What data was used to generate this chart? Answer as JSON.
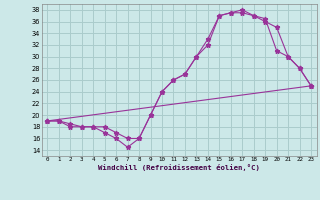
{
  "xlabel": "Windchill (Refroidissement éolien,°C)",
  "bg_color": "#cce8e8",
  "grid_color": "#aacccc",
  "line_color": "#993399",
  "xlim": [
    -0.5,
    23.5
  ],
  "ylim": [
    13,
    39
  ],
  "yticks": [
    14,
    16,
    18,
    20,
    22,
    24,
    26,
    28,
    30,
    32,
    34,
    36,
    38
  ],
  "xticks": [
    0,
    1,
    2,
    3,
    4,
    5,
    6,
    7,
    8,
    9,
    10,
    11,
    12,
    13,
    14,
    15,
    16,
    17,
    18,
    19,
    20,
    21,
    22,
    23
  ],
  "line1_x": [
    0,
    1,
    2,
    3,
    4,
    5,
    6,
    7,
    8,
    9,
    10,
    11,
    12,
    13,
    14,
    15,
    16,
    17,
    18,
    19,
    20,
    21,
    22,
    23
  ],
  "line1_y": [
    19,
    19,
    18,
    18,
    18,
    17,
    16,
    14.5,
    16,
    20,
    24,
    26,
    27,
    30,
    32,
    37,
    37.5,
    37.5,
    37,
    36,
    35,
    30,
    28,
    25
  ],
  "line2_x": [
    0,
    1,
    2,
    3,
    4,
    5,
    6,
    7,
    8,
    9,
    10,
    11,
    12,
    13,
    14,
    15,
    16,
    17,
    18,
    19,
    20,
    21,
    22,
    23
  ],
  "line2_y": [
    19,
    19,
    18.5,
    18,
    18,
    18,
    17,
    16,
    16,
    20,
    24,
    26,
    27,
    30,
    33,
    37,
    37.5,
    38,
    37,
    36.5,
    31,
    30,
    28,
    25
  ],
  "line3_x": [
    0,
    23
  ],
  "line3_y": [
    19,
    25
  ]
}
